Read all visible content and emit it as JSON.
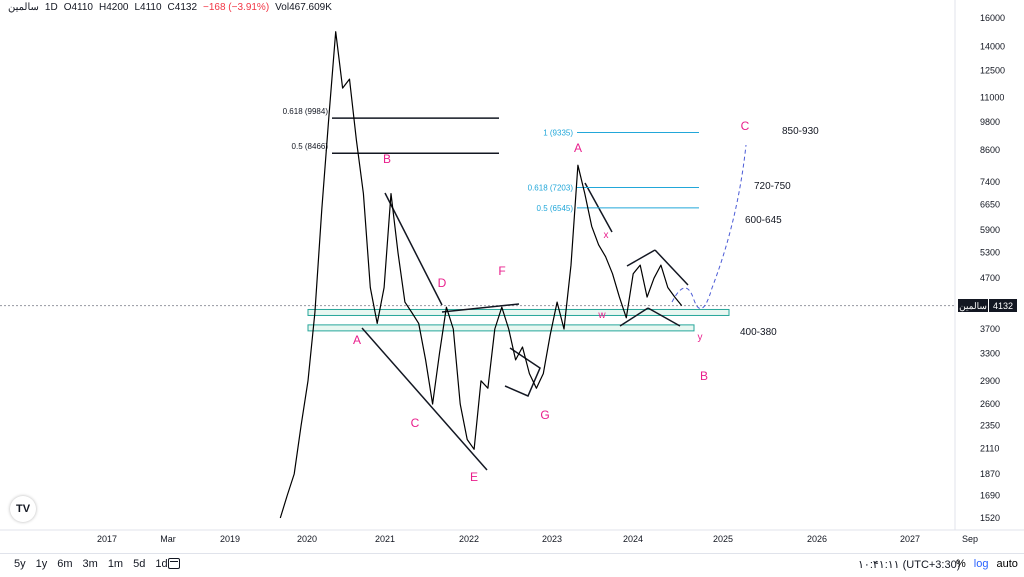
{
  "header": {
    "symbol": "سالمین",
    "timeframe": "1D",
    "open": "O4110",
    "high": "H4200",
    "low": "L4110",
    "close": "C4132",
    "change": "−168 (−3.91%)",
    "volume": "Vol467.609K"
  },
  "price_marker": {
    "label": "سالمین",
    "value": "4132"
  },
  "toolbar": {
    "ranges": [
      "5y",
      "1y",
      "6m",
      "3m",
      "1m",
      "5d",
      "1d"
    ],
    "clock": "۱۰:۴۱:۱۱ (UTC+3:30)",
    "percent_label": "%",
    "log_label": "log",
    "auto_label": "auto"
  },
  "colors": {
    "price_line": "#000000",
    "fib_left": "#131722",
    "fib_right": "#22a7d9",
    "wave_label": "#e91e8c",
    "zone_border": "#26a69a",
    "zone_fill": "#e8f7f1",
    "current_price_box": "#131722"
  },
  "chart_data": {
    "type": "line",
    "scale": "log",
    "grid": false,
    "x_ticks": [
      "2017",
      "Mar",
      "2019",
      "2020",
      "2021",
      "2022",
      "2023",
      "2024",
      "2025",
      "2026",
      "2027",
      "Sep"
    ],
    "y_ticks": [
      1520,
      1690,
      1870,
      2110,
      2350,
      2600,
      2900,
      3300,
      3700,
      4132,
      4700,
      5300,
      5900,
      6650,
      7400,
      8600,
      9800,
      11000,
      12500,
      14000,
      16000
    ],
    "ylim": [
      1450,
      16500
    ],
    "series": [
      {
        "x": [
          "2019-09",
          "2019-10",
          "2019-11",
          "2019-12",
          "2020-01",
          "2020-02",
          "2020-03",
          "2020-04",
          "2020-05",
          "2020-06",
          "2020-07",
          "2020-08",
          "2020-09",
          "2020-10",
          "2020-11",
          "2020-12",
          "2021-01",
          "2021-02",
          "2021-03",
          "2021-04",
          "2021-05",
          "2021-06",
          "2021-07",
          "2021-08",
          "2021-09",
          "2021-10",
          "2021-11",
          "2021-12",
          "2022-01",
          "2022-02",
          "2022-03",
          "2022-04",
          "2022-05",
          "2022-06",
          "2022-07",
          "2022-08",
          "2022-09",
          "2022-10",
          "2022-11",
          "2022-12",
          "2023-01",
          "2023-02",
          "2023-03",
          "2023-04",
          "2023-05",
          "2023-06",
          "2023-07",
          "2023-08",
          "2023-09",
          "2023-10",
          "2023-11",
          "2023-12",
          "2024-01",
          "2024-02",
          "2024-03",
          "2024-04",
          "2024-05",
          "2024-06",
          "2024-07"
        ],
        "values": [
          1520,
          1690,
          1870,
          2350,
          2900,
          4000,
          6500,
          10000,
          15000,
          11500,
          12000,
          9000,
          7000,
          4500,
          3800,
          4500,
          7000,
          5300,
          4200,
          4000,
          3800,
          3200,
          2600,
          3300,
          4100,
          3700,
          2600,
          2200,
          2100,
          2900,
          2800,
          3700,
          4100,
          3700,
          3200,
          3400,
          3000,
          2800,
          3000,
          3600,
          4200,
          3700,
          5000,
          8000,
          7000,
          6000,
          5500,
          5200,
          4800,
          4300,
          3900,
          4800,
          5000,
          4300,
          4700,
          5000,
          4500,
          4300,
          4132
        ]
      }
    ],
    "annotations": {
      "fib_left": [
        {
          "label": "0.618 (9984)",
          "price": 9984
        },
        {
          "label": "0.5 (8466)",
          "price": 8466
        }
      ],
      "fib_right": [
        {
          "label": "1 (9335)",
          "price": 9335
        },
        {
          "label": "0.618 (7203)",
          "price": 7203
        },
        {
          "label": "0.5 (6545)",
          "price": 6545
        }
      ],
      "wave_labels": [
        "A",
        "B",
        "C",
        "D",
        "E",
        "F",
        "G",
        "A",
        "x",
        "w",
        "y",
        "B",
        "C"
      ],
      "targets": [
        "850-930",
        "720-750",
        "600-645",
        "400-380"
      ],
      "support_zones": [
        4000,
        3720
      ]
    }
  }
}
